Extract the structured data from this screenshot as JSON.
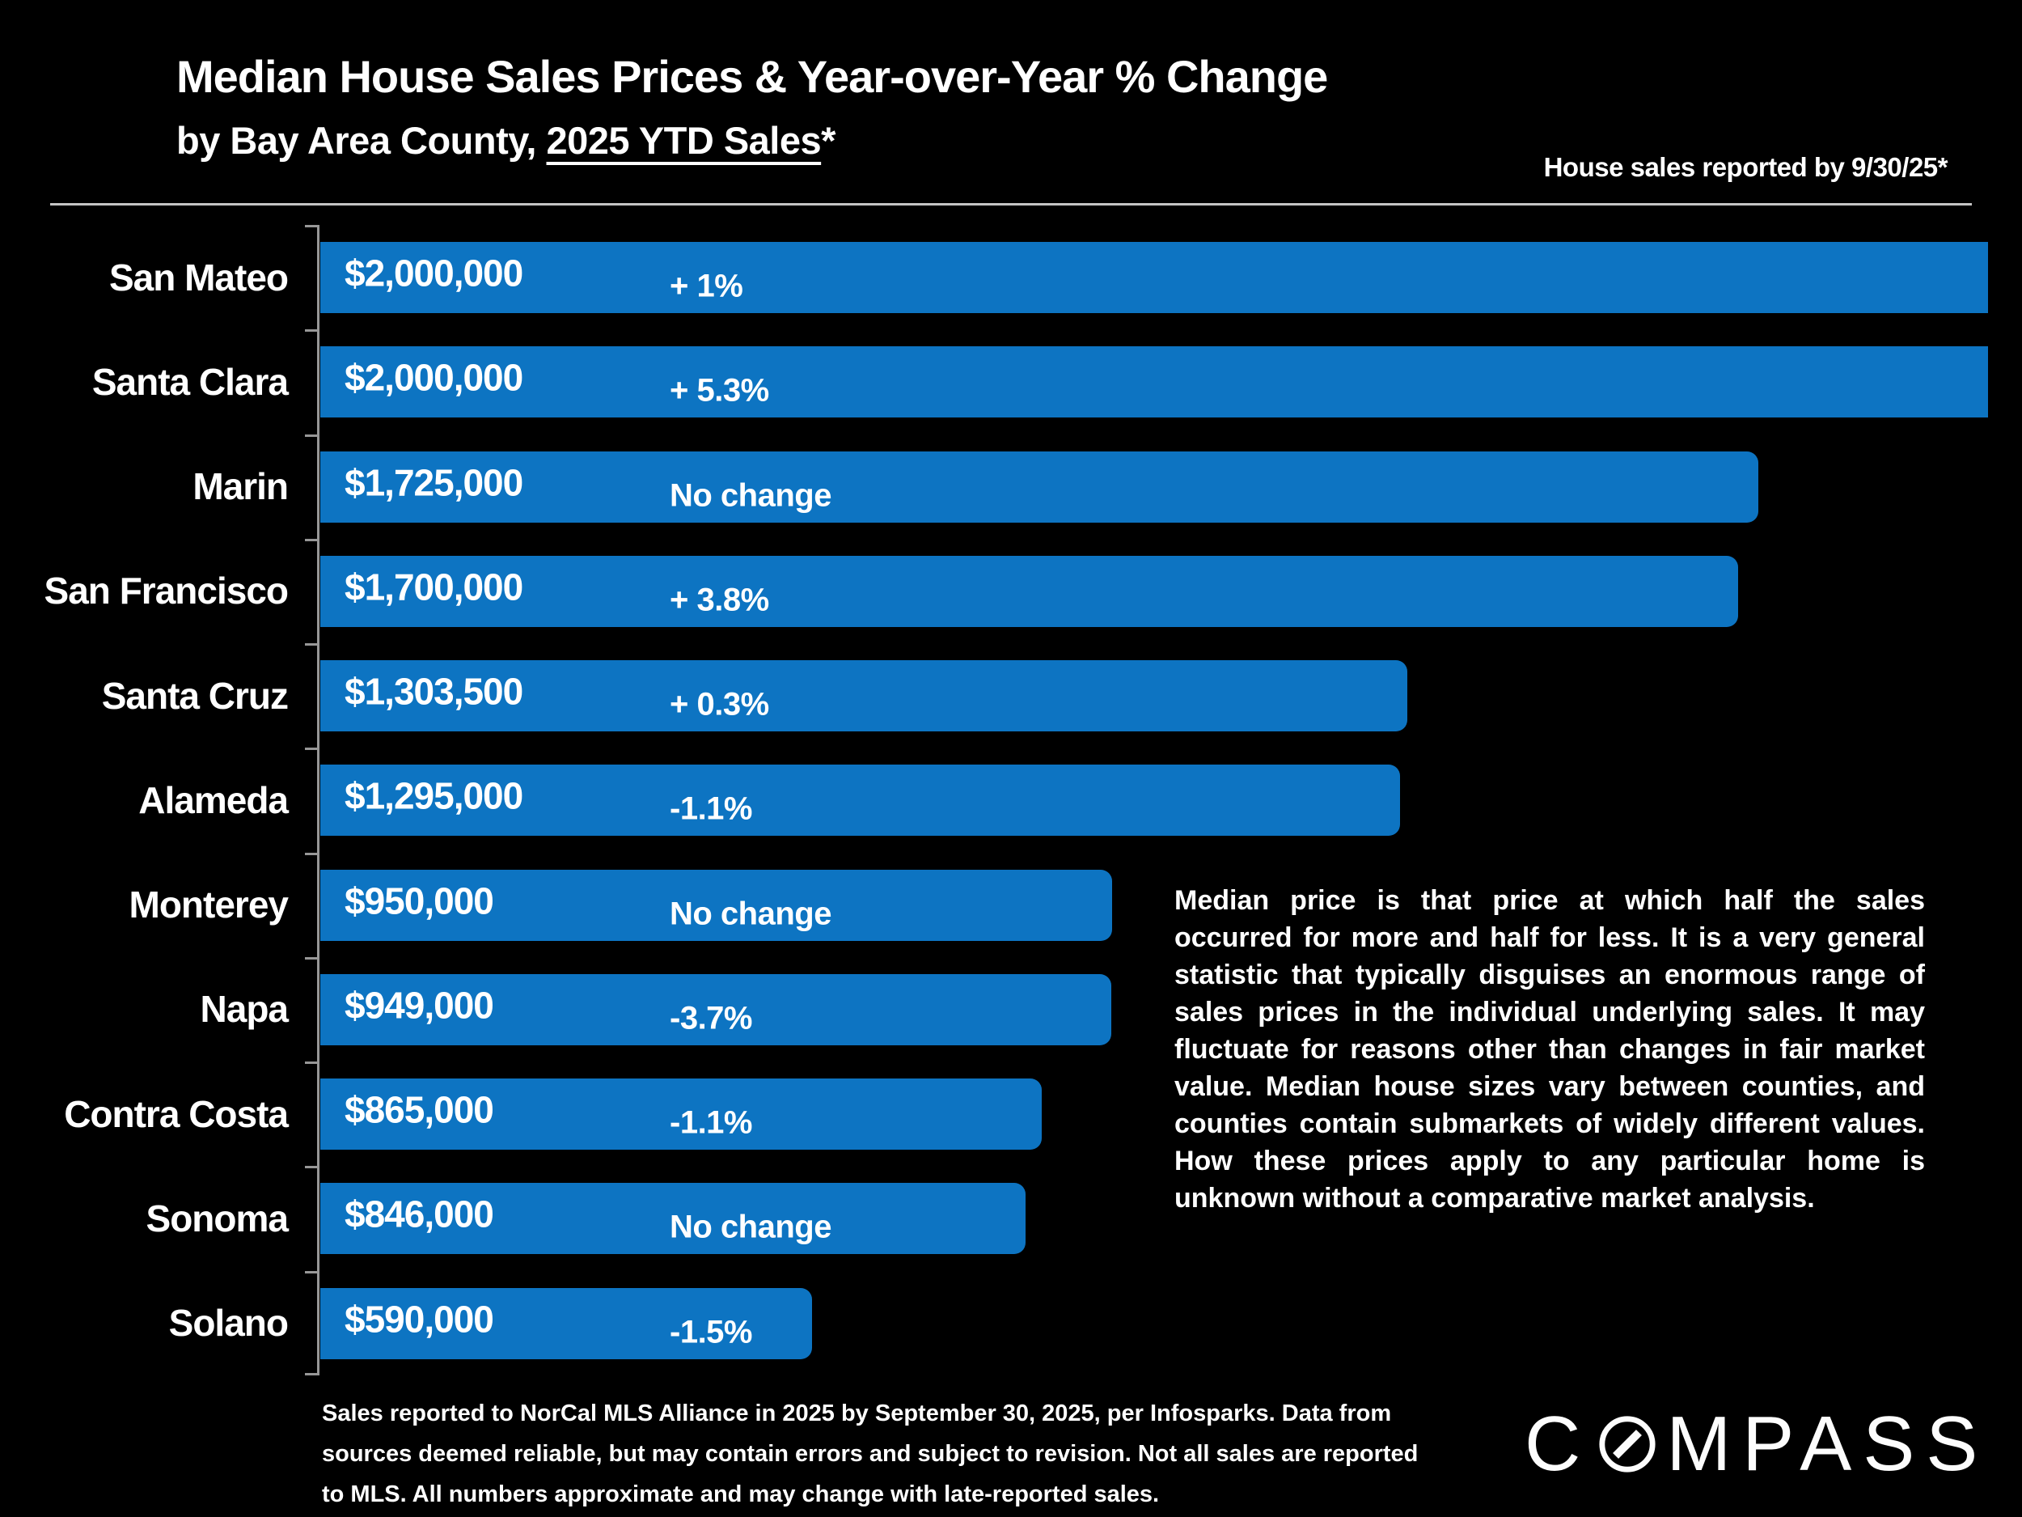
{
  "header": {
    "title": "Median House Sales Prices & Year-over-Year % Change",
    "subtitle_prefix": "by Bay Area County, ",
    "subtitle_underline": "2025 YTD Sales",
    "subtitle_suffix": "*",
    "right_note": "House sales reported by 9/30/25*"
  },
  "chart_data": {
    "type": "bar",
    "orientation": "horizontal",
    "title": "Median House Sales Prices & Year-over-Year % Change by Bay Area County, 2025 YTD Sales",
    "categories": [
      "San Mateo",
      "Santa Clara",
      "Marin",
      "San Francisco",
      "Santa Cruz",
      "Alameda",
      "Monterey",
      "Napa",
      "Contra Costa",
      "Sonoma",
      "Solano"
    ],
    "series": [
      {
        "name": "Median house sales price (USD)",
        "values": [
          2000000,
          2000000,
          1725000,
          1700000,
          1303500,
          1295000,
          950000,
          949000,
          865000,
          846000,
          590000
        ]
      }
    ],
    "price_labels": [
      "$2,000,000",
      "$2,000,000",
      "$1,725,000",
      "$1,700,000",
      "$1,303,500",
      "$1,295,000",
      "$950,000",
      "$949,000",
      "$865,000",
      "$846,000",
      "$590,000"
    ],
    "yoy_change_labels": [
      "+ 1%",
      "+ 5.3%",
      "No change",
      "+ 3.8%",
      "+ 0.3%",
      "-1.1%",
      "No change",
      "-3.7%",
      "-1.1%",
      "No change",
      "-1.5%"
    ],
    "yoy_change_pct": [
      1,
      5.3,
      0,
      3.8,
      0.3,
      -1.1,
      0,
      -3.7,
      -1.1,
      0,
      -1.5
    ],
    "xlim": [
      0,
      2000000
    ],
    "grid": false,
    "legend": false,
    "bar_color": "#0d74c2",
    "axis_color": "#979797",
    "background_color": "#000000",
    "text_color": "#ffffff"
  },
  "sidenote": "Median price is that price at which half the sales occurred for more and half for less. It is a very general statistic that typically disguises an enormous range of sales prices in the individual underlying sales. It may fluctuate for reasons other than changes in fair market value. Median house sizes vary between counties, and counties contain submarkets of widely different values. How these prices apply to any particular home is unknown without a comparative market analysis.",
  "footer": "Sales reported to NorCal MLS Alliance in 2025 by September 30, 2025, per Infosparks. Data from sources deemed reliable, but may contain errors and subject to revision. Not all sales are reported to MLS. All numbers approximate and may change with late-reported sales.",
  "logo": {
    "c": "C",
    "rest": "MPASS",
    "brand": "COMPASS"
  }
}
